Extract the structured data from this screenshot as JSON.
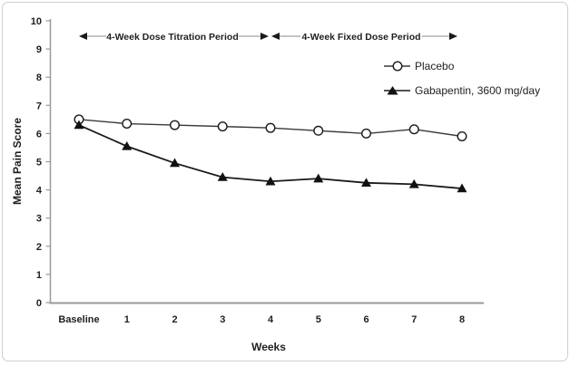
{
  "chart_data": {
    "type": "line",
    "categories": [
      "Baseline",
      "1",
      "2",
      "3",
      "4",
      "5",
      "6",
      "7",
      "8"
    ],
    "series": [
      {
        "name": "Placebo",
        "marker": "open-circle",
        "values": [
          6.5,
          6.35,
          6.3,
          6.25,
          6.2,
          6.1,
          6.0,
          6.15,
          5.9
        ]
      },
      {
        "name": "Gabapentin, 3600 mg/day",
        "marker": "filled-triangle",
        "values": [
          6.3,
          5.55,
          4.95,
          4.45,
          4.3,
          4.4,
          4.25,
          4.2,
          4.05
        ]
      }
    ],
    "title": "",
    "xlabel": "Weeks",
    "ylabel": "Mean Pain Score",
    "ylim": [
      0,
      10
    ],
    "y_ticks": [
      0,
      1,
      2,
      3,
      4,
      5,
      6,
      7,
      8,
      9,
      10
    ],
    "grid": false,
    "legend_position": "upper-right-inside",
    "annotations": [
      {
        "label": "4-Week Dose Titration Period",
        "span": [
          "Baseline",
          "4"
        ]
      },
      {
        "label": "4-Week Fixed Dose Period",
        "span": [
          "4",
          "8"
        ]
      }
    ],
    "colors": {
      "series_line": "#1a1a1a",
      "placebo_line": "#3a3a3a",
      "axis": "#9a9a9a",
      "text": "#1f1f1f",
      "background": "#ffffff"
    }
  }
}
